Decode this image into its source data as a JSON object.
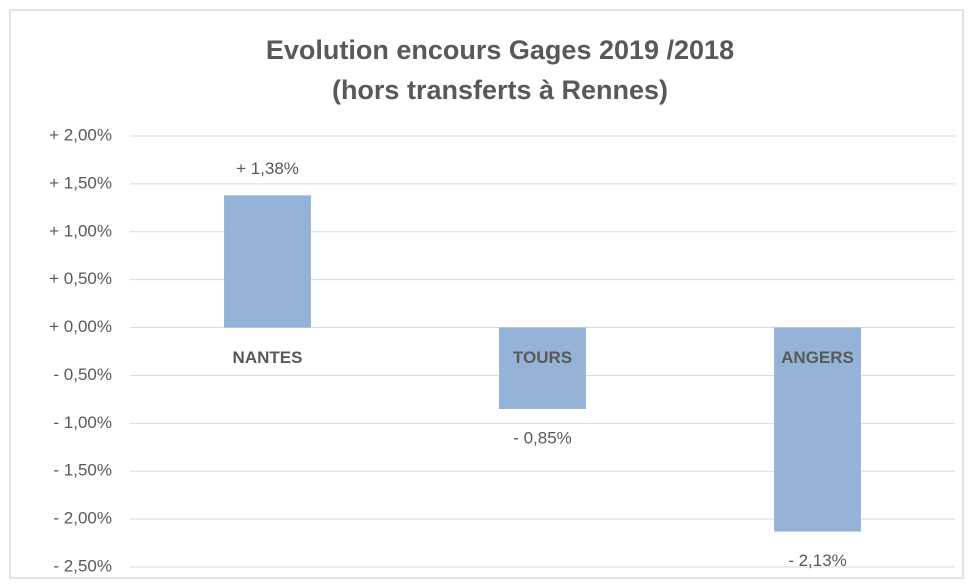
{
  "chart_data": {
    "type": "bar",
    "title": "Evolution encours Gages 2019 /2018",
    "subtitle": "(hors transferts à Rennes)",
    "categories": [
      "NANTES",
      "TOURS",
      "ANGERS"
    ],
    "values": [
      1.38,
      -0.85,
      -2.13
    ],
    "value_labels": [
      "+ 1,38%",
      "- 0,85%",
      "- 2,13%"
    ],
    "color": "#95b3d7",
    "ylim": [
      -2.5,
      2.0
    ],
    "yticks": [
      {
        "value": 2.0,
        "label": "+ 2,00%"
      },
      {
        "value": 1.5,
        "label": "+ 1,50%"
      },
      {
        "value": 1.0,
        "label": "+ 1,00%"
      },
      {
        "value": 0.5,
        "label": "+ 0,50%"
      },
      {
        "value": 0.0,
        "label": "+ 0,00%"
      },
      {
        "value": -0.5,
        "label": "- 0,50%"
      },
      {
        "value": -1.0,
        "label": "- 1,00%"
      },
      {
        "value": -1.5,
        "label": "- 1,50%"
      },
      {
        "value": -2.0,
        "label": "- 2,00%"
      },
      {
        "value": -2.5,
        "label": "- 2,50%"
      }
    ],
    "grid": true
  }
}
